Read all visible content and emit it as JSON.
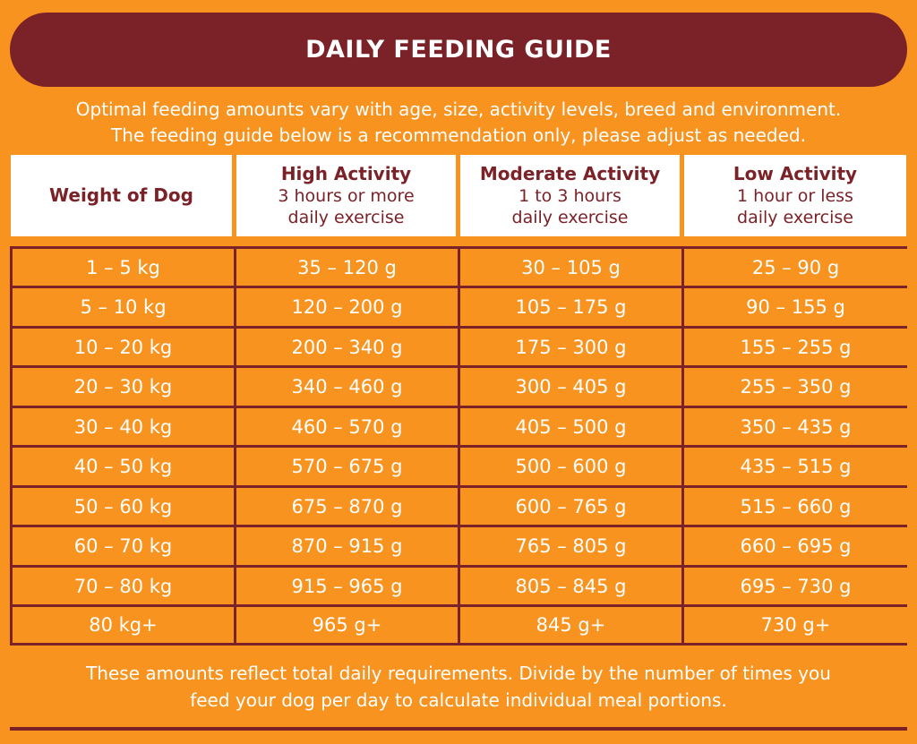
{
  "title": "DAILY FEEDING GUIDE",
  "intro": [
    "Optimal feeding amounts vary with age, size, activity levels, breed and environment.",
    "The feeding guide below is a recommendation only, please adjust as needed."
  ],
  "columns": [
    {
      "title": "Weight of Dog",
      "sub1": "",
      "sub2": ""
    },
    {
      "title": "High Activity",
      "sub1": "3 hours or more",
      "sub2": "daily exercise"
    },
    {
      "title": "Moderate Activity",
      "sub1": "1 to 3 hours",
      "sub2": "daily exercise"
    },
    {
      "title": "Low Activity",
      "sub1": "1 hour or less",
      "sub2": "daily exercise"
    }
  ],
  "rows": [
    [
      "1 – 5 kg",
      "35 – 120 g",
      "30 – 105 g",
      "25 – 90 g"
    ],
    [
      "5 – 10 kg",
      "120 – 200 g",
      "105 – 175 g",
      "90 – 155 g"
    ],
    [
      "10 – 20 kg",
      "200 – 340 g",
      "175 – 300 g",
      "155 – 255 g"
    ],
    [
      "20 – 30 kg",
      "340 – 460 g",
      "300 – 405 g",
      "255 – 350 g"
    ],
    [
      "30 – 40 kg",
      "460 – 570 g",
      "405 – 500 g",
      "350 – 435 g"
    ],
    [
      "40 – 50 kg",
      "570 – 675 g",
      "500 – 600 g",
      "435 – 515 g"
    ],
    [
      "50 – 60 kg",
      "675 – 870 g",
      "600 – 765 g",
      "515 – 660 g"
    ],
    [
      "60 – 70 kg",
      "870 – 915 g",
      "765 – 805 g",
      "660 – 695 g"
    ],
    [
      "70 – 80 kg",
      "915 – 965 g",
      "805 – 845 g",
      "695 – 730 g"
    ],
    [
      "80 kg+",
      "965 g+",
      "845 g+",
      "730 g+"
    ]
  ],
  "footer": [
    "These amounts reflect total daily requirements. Divide by the number of times you",
    "feed your dog per day to calculate individual meal portions."
  ],
  "colors": {
    "orange": "#f7931e",
    "maroon": "#7b2228",
    "white": "#ffffff"
  }
}
